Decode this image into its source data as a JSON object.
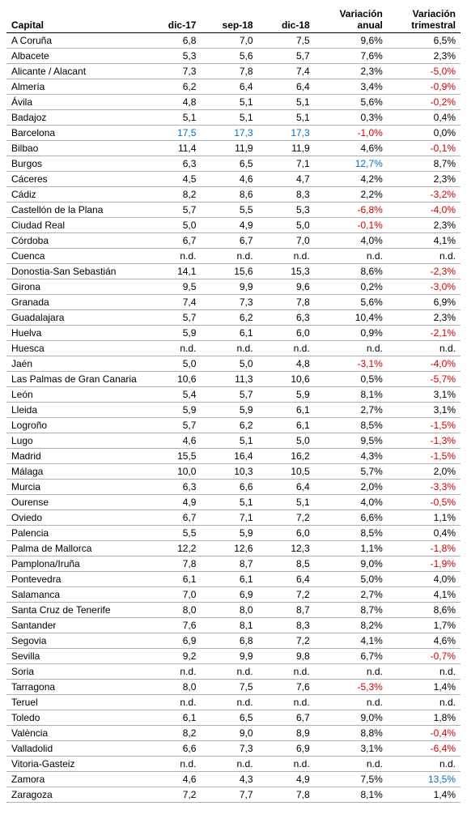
{
  "columns": [
    "Capital",
    "dic-17",
    "sep-18",
    "dic-18",
    "Variación anual",
    "Variación trimestral"
  ],
  "col_widths": [
    "170px",
    "70px",
    "70px",
    "70px",
    "90px",
    "90px"
  ],
  "default_color": "#000000",
  "negative_color": "#d00000",
  "highlight_color": "#0070c0",
  "rows": [
    {
      "c": "A Coruña",
      "d17": "6,8",
      "s18": "7,0",
      "d18": "7,5",
      "va": "9,6%",
      "vt": "6,5%"
    },
    {
      "c": "Albacete",
      "d17": "5,3",
      "s18": "5,6",
      "d18": "5,7",
      "va": "7,6%",
      "vt": "2,3%"
    },
    {
      "c": "Alicante / Alacant",
      "d17": "7,3",
      "s18": "7,8",
      "d18": "7,4",
      "va": "2,3%",
      "vt": "-5,0%",
      "vt_cls": "neg"
    },
    {
      "c": "Almería",
      "d17": "6,2",
      "s18": "6,4",
      "d18": "6,4",
      "va": "3,4%",
      "vt": "-0,9%",
      "vt_cls": "neg"
    },
    {
      "c": "Ávila",
      "d17": "4,8",
      "s18": "5,1",
      "d18": "5,1",
      "va": "5,6%",
      "vt": "-0,2%",
      "vt_cls": "neg"
    },
    {
      "c": "Badajoz",
      "d17": "5,1",
      "s18": "5,1",
      "d18": "5,1",
      "va": "0,3%",
      "vt": "0,4%"
    },
    {
      "c": "Barcelona",
      "d17": "17,5",
      "d17_cls": "hi",
      "s18": "17,3",
      "s18_cls": "hi",
      "d18": "17,3",
      "d18_cls": "hi",
      "va": "-1,0%",
      "va_cls": "neg",
      "vt": "0,0%"
    },
    {
      "c": "Bilbao",
      "d17": "11,4",
      "s18": "11,9",
      "d18": "11,9",
      "va": "4,6%",
      "vt": "-0,1%",
      "vt_cls": "neg"
    },
    {
      "c": "Burgos",
      "d17": "6,3",
      "s18": "6,5",
      "d18": "7,1",
      "va": "12,7%",
      "va_cls": "hi",
      "vt": "8,7%"
    },
    {
      "c": "Cáceres",
      "d17": "4,5",
      "s18": "4,6",
      "d18": "4,7",
      "va": "4,2%",
      "vt": "2,3%"
    },
    {
      "c": "Cádiz",
      "d17": "8,2",
      "s18": "8,6",
      "d18": "8,3",
      "va": "2,2%",
      "vt": "-3,2%",
      "vt_cls": "neg"
    },
    {
      "c": "Castellón de la Plana",
      "d17": "5,7",
      "s18": "5,5",
      "d18": "5,3",
      "va": "-6,8%",
      "va_cls": "neg",
      "vt": "-4,0%",
      "vt_cls": "neg"
    },
    {
      "c": "Ciudad Real",
      "d17": "5,0",
      "s18": "4,9",
      "d18": "5,0",
      "va": "-0,1%",
      "va_cls": "neg",
      "vt": "2,3%"
    },
    {
      "c": "Córdoba",
      "d17": "6,7",
      "s18": "6,7",
      "d18": "7,0",
      "va": "4,0%",
      "vt": "4,1%"
    },
    {
      "c": "Cuenca",
      "d17": "n.d.",
      "s18": "n.d.",
      "d18": "n.d.",
      "va": "n.d.",
      "vt": "n.d."
    },
    {
      "c": "Donostia-San Sebastián",
      "d17": "14,1",
      "s18": "15,6",
      "d18": "15,3",
      "va": "8,6%",
      "vt": "-2,3%",
      "vt_cls": "neg"
    },
    {
      "c": "Girona",
      "d17": "9,5",
      "s18": "9,9",
      "d18": "9,6",
      "va": "0,2%",
      "vt": "-3,0%",
      "vt_cls": "neg"
    },
    {
      "c": "Granada",
      "d17": "7,4",
      "s18": "7,3",
      "d18": "7,8",
      "va": "5,6%",
      "vt": "6,9%"
    },
    {
      "c": "Guadalajara",
      "d17": "5,7",
      "s18": "6,2",
      "d18": "6,3",
      "va": "10,4%",
      "vt": "2,3%"
    },
    {
      "c": "Huelva",
      "d17": "5,9",
      "s18": "6,1",
      "d18": "6,0",
      "va": "0,9%",
      "vt": "-2,1%",
      "vt_cls": "neg"
    },
    {
      "c": "Huesca",
      "d17": "n.d.",
      "s18": "n.d.",
      "d18": "n.d.",
      "va": "n.d.",
      "vt": "n.d."
    },
    {
      "c": "Jaén",
      "d17": "5,0",
      "s18": "5,0",
      "d18": "4,8",
      "va": "-3,1%",
      "va_cls": "neg",
      "vt": "-4,0%",
      "vt_cls": "neg"
    },
    {
      "c": "Las Palmas de Gran Canaria",
      "d17": "10,6",
      "s18": "11,3",
      "d18": "10,6",
      "va": "0,5%",
      "vt": "-5,7%",
      "vt_cls": "neg"
    },
    {
      "c": "León",
      "d17": "5,4",
      "s18": "5,7",
      "d18": "5,9",
      "va": "8,1%",
      "vt": "3,1%"
    },
    {
      "c": "Lleida",
      "d17": "5,9",
      "s18": "5,9",
      "d18": "6,1",
      "va": "2,7%",
      "vt": "3,1%"
    },
    {
      "c": "Logroño",
      "d17": "5,7",
      "s18": "6,2",
      "d18": "6,1",
      "va": "8,5%",
      "vt": "-1,5%",
      "vt_cls": "neg"
    },
    {
      "c": "Lugo",
      "d17": "4,6",
      "s18": "5,1",
      "d18": "5,0",
      "va": "9,5%",
      "vt": "-1,3%",
      "vt_cls": "neg"
    },
    {
      "c": "Madrid",
      "d17": "15,5",
      "s18": "16,4",
      "d18": "16,2",
      "va": "4,3%",
      "vt": "-1,5%",
      "vt_cls": "neg"
    },
    {
      "c": "Málaga",
      "d17": "10,0",
      "s18": "10,3",
      "d18": "10,5",
      "va": "5,7%",
      "vt": "2,0%"
    },
    {
      "c": "Murcia",
      "d17": "6,3",
      "s18": "6,6",
      "d18": "6,4",
      "va": "2,0%",
      "vt": "-3,3%",
      "vt_cls": "neg"
    },
    {
      "c": "Ourense",
      "d17": "4,9",
      "s18": "5,1",
      "d18": "5,1",
      "va": "4,0%",
      "vt": "-0,5%",
      "vt_cls": "neg"
    },
    {
      "c": "Oviedo",
      "d17": "6,7",
      "s18": "7,1",
      "d18": "7,2",
      "va": "6,6%",
      "vt": "1,1%"
    },
    {
      "c": "Palencia",
      "d17": "5,5",
      "s18": "5,9",
      "d18": "6,0",
      "va": "8,5%",
      "vt": "0,4%"
    },
    {
      "c": "Palma de Mallorca",
      "d17": "12,2",
      "s18": "12,6",
      "d18": "12,3",
      "va": "1,1%",
      "vt": "-1,8%",
      "vt_cls": "neg"
    },
    {
      "c": "Pamplona/Iruña",
      "d17": "7,8",
      "s18": "8,7",
      "d18": "8,5",
      "va": "9,0%",
      "vt": "-1,9%",
      "vt_cls": "neg"
    },
    {
      "c": "Pontevedra",
      "d17": "6,1",
      "s18": "6,1",
      "d18": "6,4",
      "va": "5,0%",
      "vt": "4,0%"
    },
    {
      "c": "Salamanca",
      "d17": "7,0",
      "s18": "6,9",
      "d18": "7,2",
      "va": "2,7%",
      "vt": "4,1%"
    },
    {
      "c": "Santa Cruz de Tenerife",
      "d17": "8,0",
      "s18": "8,0",
      "d18": "8,7",
      "va": "8,7%",
      "vt": "8,6%"
    },
    {
      "c": "Santander",
      "d17": "7,6",
      "s18": "8,1",
      "d18": "8,3",
      "va": "8,2%",
      "vt": "1,7%"
    },
    {
      "c": "Segovia",
      "d17": "6,9",
      "s18": "6,8",
      "d18": "7,2",
      "va": "4,1%",
      "vt": "4,6%"
    },
    {
      "c": "Sevilla",
      "d17": "9,2",
      "s18": "9,9",
      "d18": "9,8",
      "va": "6,7%",
      "vt": "-0,7%",
      "vt_cls": "neg"
    },
    {
      "c": "Soria",
      "d17": "n.d.",
      "s18": "n.d.",
      "d18": "n.d.",
      "va": "n.d.",
      "vt": "n.d."
    },
    {
      "c": "Tarragona",
      "d17": "8,0",
      "s18": "7,5",
      "d18": "7,6",
      "va": "-5,3%",
      "va_cls": "neg",
      "vt": "1,4%"
    },
    {
      "c": "Teruel",
      "d17": "n.d.",
      "s18": "n.d.",
      "d18": "n.d.",
      "va": "n.d.",
      "vt": "n.d."
    },
    {
      "c": "Toledo",
      "d17": "6,1",
      "s18": "6,5",
      "d18": "6,7",
      "va": "9,0%",
      "vt": "1,8%"
    },
    {
      "c": "València",
      "d17": "8,2",
      "s18": "9,0",
      "d18": "8,9",
      "va": "8,8%",
      "vt": "-0,4%",
      "vt_cls": "neg"
    },
    {
      "c": "Valladolid",
      "d17": "6,6",
      "s18": "7,3",
      "d18": "6,9",
      "va": "3,1%",
      "vt": "-6,4%",
      "vt_cls": "neg"
    },
    {
      "c": "Vitoria-Gasteiz",
      "d17": "n.d.",
      "s18": "n.d.",
      "d18": "n.d.",
      "va": "n.d.",
      "vt": "n.d."
    },
    {
      "c": "Zamora",
      "d17": "4,6",
      "s18": "4,3",
      "d18": "4,9",
      "va": "7,5%",
      "vt": "13,5%",
      "vt_cls": "hi"
    },
    {
      "c": "Zaragoza",
      "d17": "7,2",
      "s18": "7,7",
      "d18": "7,8",
      "va": "8,1%",
      "vt": "1,4%"
    }
  ]
}
